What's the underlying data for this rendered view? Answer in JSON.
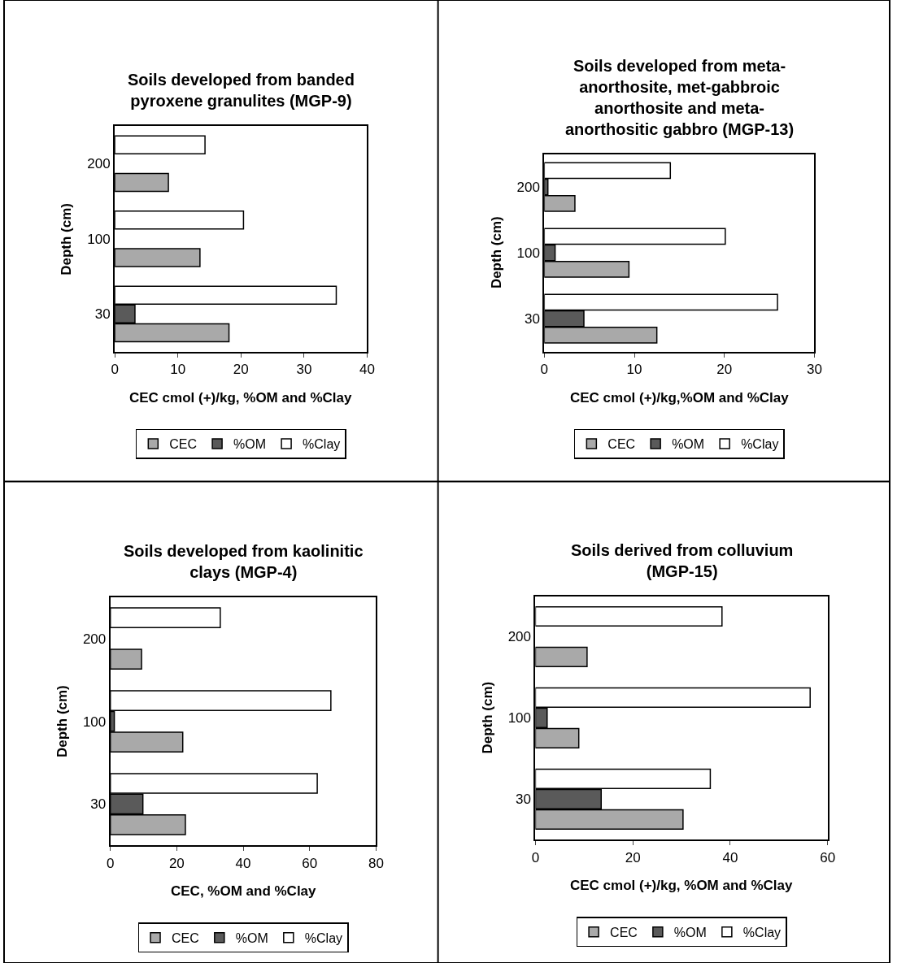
{
  "chart_data": [
    {
      "type": "bar",
      "orientation": "horizontal",
      "title": "Soils developed from banded pyroxene granulites (MGP-9)",
      "xlabel": "CEC cmol (+)/kg, %OM and %Clay",
      "ylabel": "Depth (cm)",
      "categories": [
        "200",
        "100",
        "30"
      ],
      "xlim": [
        0,
        40
      ],
      "xticks": [
        0,
        10,
        20,
        30,
        40
      ],
      "grid": false,
      "legend": "bottom",
      "series": [
        {
          "name": "CEC",
          "color": "#a9a9a9",
          "values": [
            8.5,
            13.5,
            18.1
          ]
        },
        {
          "name": "%OM",
          "color": "#5a5a5a",
          "values": [
            null,
            null,
            3.2
          ]
        },
        {
          "name": "%Clay",
          "color": "#ffffff",
          "values": [
            14.3,
            20.4,
            35.1
          ]
        }
      ]
    },
    {
      "type": "bar",
      "orientation": "horizontal",
      "title": "Soils developed from meta-anorthosite, met-gabbroic anorthosite and meta-anorthositic gabbro (MGP-13)",
      "xlabel": "CEC cmol (+)/kg,%OM and %Clay",
      "ylabel": "Depth (cm)",
      "categories": [
        "200",
        "100",
        "30"
      ],
      "xlim": [
        0,
        30
      ],
      "xticks": [
        0,
        10,
        20,
        30
      ],
      "grid": false,
      "legend": "bottom",
      "series": [
        {
          "name": "CEC",
          "color": "#a9a9a9",
          "values": [
            3.4,
            9.4,
            12.5
          ]
        },
        {
          "name": "%OM",
          "color": "#5a5a5a",
          "values": [
            0.4,
            1.2,
            4.4
          ]
        },
        {
          "name": "%Clay",
          "color": "#ffffff",
          "values": [
            14.0,
            20.1,
            25.9
          ]
        }
      ]
    },
    {
      "type": "bar",
      "orientation": "horizontal",
      "title": "Soils developed from kaolinitic clays (MGP-4)",
      "xlabel": "CEC, %OM and %Clay",
      "ylabel": "Depth (cm)",
      "categories": [
        "200",
        "100",
        "30"
      ],
      "xlim": [
        0,
        80
      ],
      "xticks": [
        0,
        20,
        40,
        60,
        80
      ],
      "grid": false,
      "legend": "bottom",
      "series": [
        {
          "name": "CEC",
          "color": "#a9a9a9",
          "values": [
            9.4,
            21.8,
            22.6
          ]
        },
        {
          "name": "%OM",
          "color": "#5a5a5a",
          "values": [
            null,
            1.2,
            9.8
          ]
        },
        {
          "name": "%Clay",
          "color": "#ffffff",
          "values": [
            33.1,
            66.4,
            62.3
          ]
        }
      ]
    },
    {
      "type": "bar",
      "orientation": "horizontal",
      "title": "Soils derived from colluvium (MGP-15)",
      "xlabel": "CEC cmol (+)/kg, %OM and %Clay",
      "ylabel": "Depth (cm)",
      "categories": [
        "200",
        "100",
        "30"
      ],
      "xlim": [
        0,
        60
      ],
      "xticks": [
        0,
        20,
        40,
        60
      ],
      "grid": false,
      "legend": "bottom",
      "series": [
        {
          "name": "CEC",
          "color": "#a9a9a9",
          "values": [
            10.6,
            8.9,
            30.3
          ]
        },
        {
          "name": "%OM",
          "color": "#5a5a5a",
          "values": [
            null,
            2.4,
            13.5
          ]
        },
        {
          "name": "%Clay",
          "color": "#ffffff",
          "values": [
            38.3,
            56.4,
            35.9
          ]
        }
      ]
    }
  ]
}
